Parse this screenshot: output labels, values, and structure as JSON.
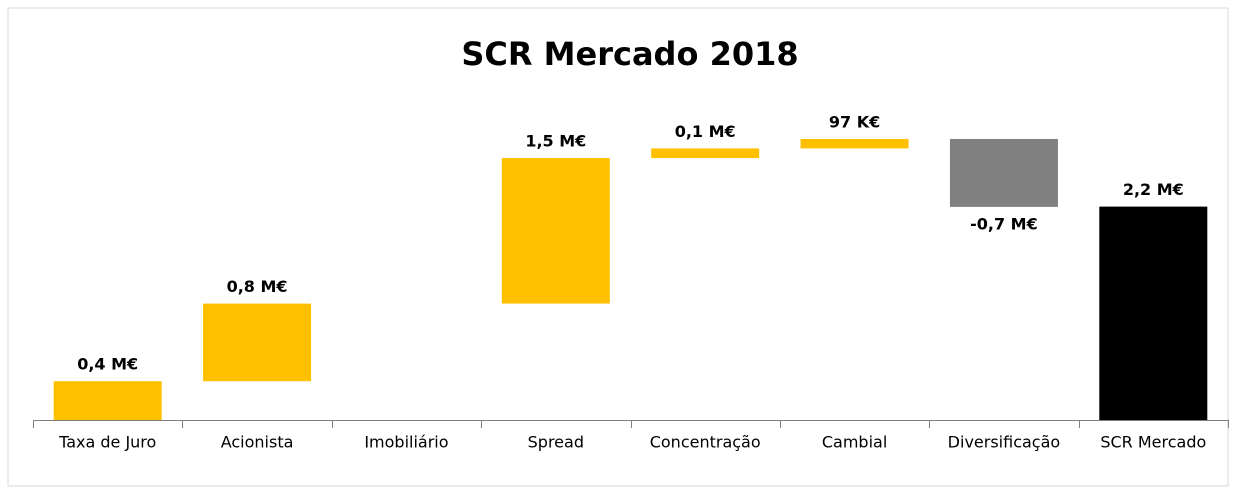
{
  "chart_data": {
    "type": "waterfall",
    "title": "SCR Mercado 2018",
    "categories": [
      "Taxa de Juro",
      "Acionista",
      "Imobiliário",
      "Spread",
      "Concentração",
      "Cambial",
      "Diversificação",
      "SCR Mercado"
    ],
    "values": [
      0.4,
      0.8,
      0,
      1.5,
      0.1,
      0.097,
      -0.7,
      2.2
    ],
    "value_labels": [
      "0,4 M€",
      "0,8 M€",
      null,
      "1,5 M€",
      "0,1 M€",
      "97 K€",
      "-0,7 M€",
      "2,2 M€"
    ],
    "total_bars": [
      false,
      false,
      false,
      false,
      false,
      false,
      false,
      true
    ],
    "increase_color": "#ffc000",
    "decrease_color": "#808080",
    "total_color": "#000000"
  }
}
